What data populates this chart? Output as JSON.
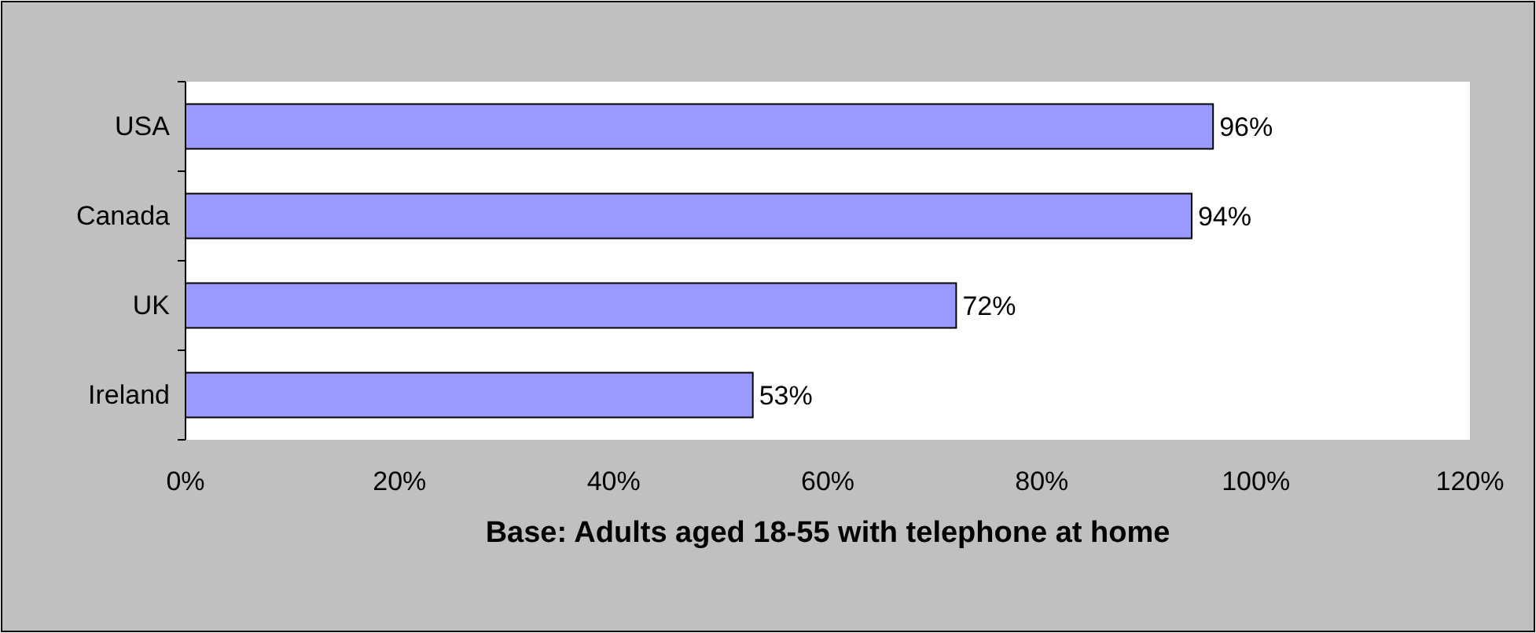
{
  "chart_data": {
    "type": "bar",
    "orientation": "horizontal",
    "xlabel": "Base: Adults aged 18-55 with telephone at home",
    "categories": [
      "USA",
      "Canada",
      "UK",
      "Ireland"
    ],
    "values": [
      96,
      94,
      72,
      53
    ],
    "color": "#9999ff",
    "value_labels": [
      "96%",
      "94%",
      "72%",
      "53%"
    ],
    "xlim": [
      0,
      120
    ],
    "xticks": [
      {
        "value": 0,
        "label": "0%"
      },
      {
        "value": 20,
        "label": "20%"
      },
      {
        "value": 40,
        "label": "40%"
      },
      {
        "value": 60,
        "label": "60%"
      },
      {
        "value": 80,
        "label": "80%"
      },
      {
        "value": 100,
        "label": "100%"
      },
      {
        "value": 120,
        "label": "120%"
      }
    ],
    "grid": false
  }
}
